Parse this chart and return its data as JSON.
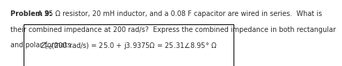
{
  "problem_label": "Problem 9:",
  "problem_body": " A 25 Ω resistor, 20 mH inductor, and a 0.08 F capacitor are wired in series.  What is",
  "problem_line2": "their combined impedance at 200 rad/s?  Express the combined impedance in both rectangular",
  "problem_line3": "and polar formats.",
  "formula_label": "Z",
  "formula_sub": "eq",
  "formula_rest": "(200 rad/s) = 25.0 + j3.9375Ω = 25.31∠8.95° Ω",
  "box_color": "#000000",
  "bg_color": "#ffffff",
  "text_color": "#2b2b2b",
  "font_size": 7.0,
  "font_size_bold": 7.0
}
